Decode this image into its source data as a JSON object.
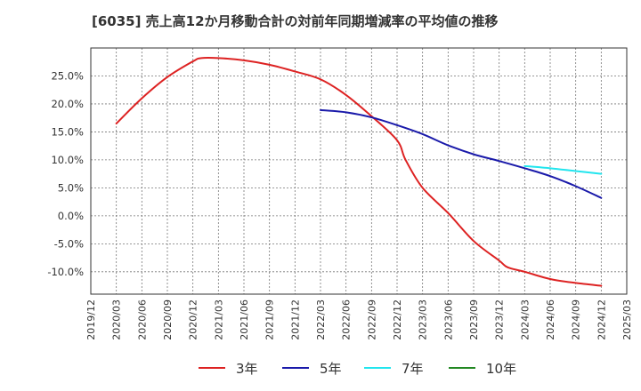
{
  "chart_data": {
    "type": "line",
    "title": "[6035]  売上高12か月移動合計の対前年同期増減率の平均値の推移",
    "xlabel": "",
    "ylabel": "",
    "ylim": [
      -14,
      30
    ],
    "yticks": [
      25,
      20,
      15,
      10,
      5,
      0,
      -5,
      -10
    ],
    "ytick_labels": [
      "25.0%",
      "20.0%",
      "15.0%",
      "10.0%",
      "5.0%",
      "0.0%",
      "-5.0%",
      "-10.0%"
    ],
    "x_tick_labels": [
      "2019/12",
      "2020/03",
      "2020/06",
      "2020/09",
      "2020/12",
      "2021/03",
      "2021/06",
      "2021/09",
      "2021/12",
      "2022/03",
      "2022/06",
      "2022/09",
      "2022/12",
      "2023/03",
      "2023/06",
      "2023/09",
      "2023/12",
      "2024/03",
      "2024/06",
      "2024/09",
      "2024/12",
      "2025/03"
    ],
    "grid": true,
    "legend_position": "bottom",
    "series": [
      {
        "name": "3年",
        "color": "#dd2222",
        "x": [
          "2020/03",
          "2020/06",
          "2020/09",
          "2020/12",
          "2021/01",
          "2021/03",
          "2021/06",
          "2021/09",
          "2021/12",
          "2022/03",
          "2022/06",
          "2022/09",
          "2022/12",
          "2023/01",
          "2023/03",
          "2023/06",
          "2023/09",
          "2023/12",
          "2024/01",
          "2024/03",
          "2024/06",
          "2024/09",
          "2024/12"
        ],
        "values": [
          16.5,
          21.0,
          24.8,
          27.6,
          28.2,
          28.2,
          27.8,
          27.0,
          25.8,
          24.4,
          21.6,
          17.8,
          13.5,
          10.0,
          5.0,
          0.5,
          -4.5,
          -8.0,
          -9.2,
          -10.0,
          -11.3,
          -12.0,
          -12.5
        ]
      },
      {
        "name": "5年",
        "color": "#1a1aaa",
        "x": [
          "2022/03",
          "2022/06",
          "2022/09",
          "2022/12",
          "2023/03",
          "2023/06",
          "2023/09",
          "2023/12",
          "2024/03",
          "2024/06",
          "2024/09",
          "2024/12"
        ],
        "values": [
          18.9,
          18.5,
          17.6,
          16.2,
          14.6,
          12.6,
          11.0,
          9.8,
          8.5,
          7.1,
          5.3,
          3.2
        ]
      },
      {
        "name": "7年",
        "color": "#22e5ee",
        "x": [
          "2024/03",
          "2024/06",
          "2024/09",
          "2024/12"
        ],
        "values": [
          8.9,
          8.5,
          8.0,
          7.5
        ]
      },
      {
        "name": "10年",
        "color": "#228822",
        "x": [],
        "values": []
      }
    ]
  }
}
